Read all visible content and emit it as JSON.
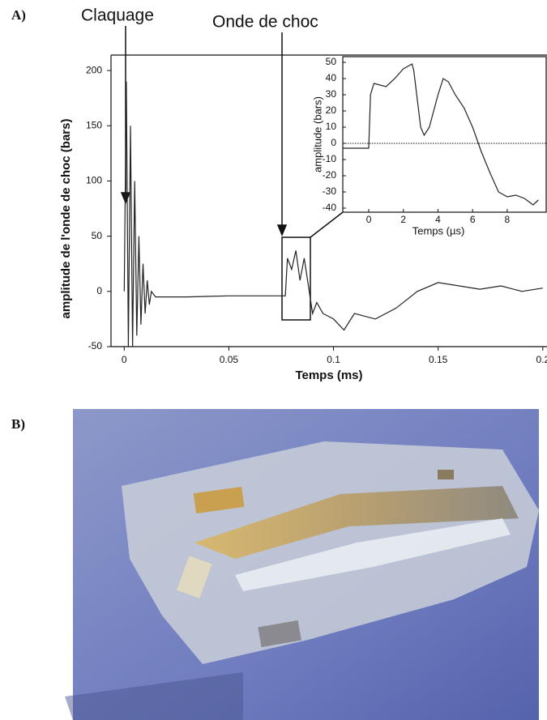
{
  "labels": {
    "a": "A)",
    "b": "B)"
  },
  "annotations": [
    "Claquage",
    "Onde de choc"
  ],
  "chart_data": [
    {
      "type": "line",
      "xlabel": "Temps (ms)",
      "ylabel": "amplitude de l'onde de choc (bars)",
      "color": "#222222",
      "x": [
        0,
        0.001,
        0.002,
        0.003,
        0.004,
        0.005,
        0.006,
        0.007,
        0.008,
        0.009,
        0.01,
        0.011,
        0.012,
        0.013,
        0.015,
        0.03,
        0.05,
        0.07,
        0.077,
        0.078,
        0.08,
        0.082,
        0.084,
        0.086,
        0.088,
        0.09,
        0.092,
        0.095,
        0.1,
        0.105,
        0.11,
        0.12,
        0.13,
        0.14,
        0.15,
        0.16,
        0.17,
        0.18,
        0.19,
        0.2
      ],
      "values": [
        0,
        190,
        -50,
        150,
        -50,
        100,
        -40,
        50,
        -30,
        25,
        -20,
        10,
        -12,
        0,
        -5,
        -5,
        -4,
        -4,
        -4,
        30,
        20,
        37,
        10,
        30,
        5,
        -20,
        -10,
        -20,
        -25,
        -35,
        -20,
        -25,
        -15,
        0,
        8,
        5,
        2,
        5,
        0,
        3
      ],
      "xlim": [
        -0.0063,
        0.202
      ],
      "ylim": [
        -50,
        214
      ],
      "xticks": [
        0,
        0.05,
        0.1,
        0.15,
        0.2
      ],
      "yticks": [
        -50,
        0,
        50,
        100,
        150,
        200
      ]
    },
    {
      "type": "line",
      "xlabel": "Temps (µs)",
      "ylabel": "amplitude (bars)",
      "color": "#222222",
      "hline": 0,
      "x": [
        -1.5,
        -0.5,
        0,
        0.1,
        0.3,
        1,
        1.5,
        2,
        2.5,
        2.6,
        3,
        3.2,
        3.5,
        4,
        4.3,
        4.6,
        5,
        5.5,
        6,
        6.5,
        7,
        7.5,
        8,
        8.5,
        9,
        9.5,
        9.8
      ],
      "values": [
        -3,
        -3,
        -3,
        30,
        37,
        35,
        40,
        46,
        49,
        45,
        10,
        5,
        10,
        30,
        40,
        38,
        30,
        22,
        10,
        -5,
        -18,
        -30,
        -33,
        -32,
        -34,
        -38,
        -35
      ],
      "xlim": [
        -1.5,
        10.3
      ],
      "ylim": [
        -42.5,
        53.5
      ],
      "xticks": [
        0,
        2,
        4,
        6,
        8
      ],
      "yticks": [
        -40,
        -30,
        -20,
        -10,
        0,
        10,
        20,
        30,
        40,
        50
      ]
    }
  ]
}
